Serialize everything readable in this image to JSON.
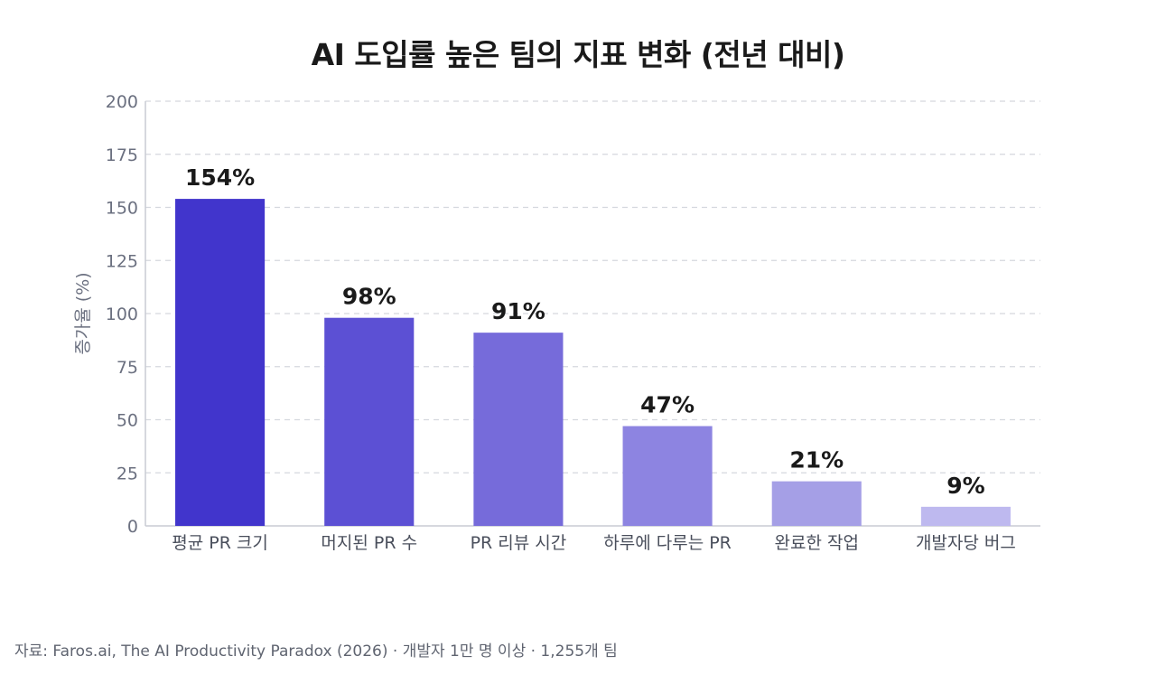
{
  "chart_data": {
    "type": "bar",
    "title": "AI 도입률 높은 팀의 지표 변화 (전년 대비)",
    "ylabel": "증가율 (%)",
    "xlabel": "",
    "ylim": [
      0,
      200
    ],
    "yticks": [
      0,
      25,
      50,
      75,
      100,
      125,
      150,
      175,
      200
    ],
    "grid": true,
    "categories": [
      "평균 PR 크기",
      "머지된 PR 수",
      "PR 리뷰 시간",
      "하루에 다루는 PR",
      "완료한 작업",
      "개발자당 버그"
    ],
    "values": [
      154,
      98,
      91,
      47,
      21,
      9
    ],
    "data_labels": [
      "154%",
      "98%",
      "91%",
      "47%",
      "21%",
      "9%"
    ],
    "colors": [
      "#4135cc",
      "#5c50d4",
      "#766bda",
      "#8d84e1",
      "#a59fe6",
      "#beb9ef"
    ]
  },
  "footer": {
    "source": "자료: Faros.ai, The AI Productivity Paradox (2026) · 개발자 1만 명 이상 · 1,255개 팀"
  }
}
